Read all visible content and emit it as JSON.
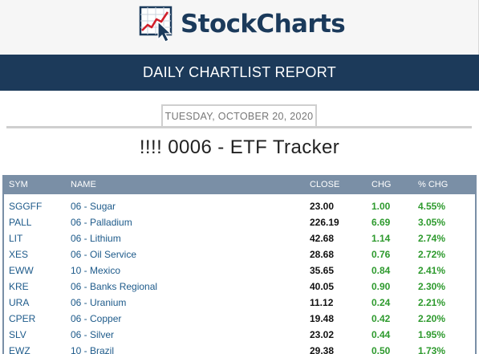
{
  "header": {
    "logo_text": "StockCharts",
    "logo_icon": "chart-cursor-icon"
  },
  "report": {
    "title": "DAILY CHARTLIST REPORT",
    "date": "TUESDAY, OCTOBER 20, 2020",
    "chartlist_title": "!!!! 0006 - ETF Tracker"
  },
  "table": {
    "columns": [
      "SYM",
      "NAME",
      "CLOSE",
      "CHG",
      "% CHG"
    ],
    "rows": [
      {
        "sym": "SGGFF",
        "name": "06 - Sugar",
        "close": "23.00",
        "chg": "1.00",
        "pct": "4.55%"
      },
      {
        "sym": "PALL",
        "name": "06 - Palladium",
        "close": "226.19",
        "chg": "6.69",
        "pct": "3.05%"
      },
      {
        "sym": "LIT",
        "name": "06 - Lithium",
        "close": "42.68",
        "chg": "1.14",
        "pct": "2.74%"
      },
      {
        "sym": "XES",
        "name": "06 - Oil Service",
        "close": "28.68",
        "chg": "0.76",
        "pct": "2.72%"
      },
      {
        "sym": "EWW",
        "name": "10 - Mexico",
        "close": "35.65",
        "chg": "0.84",
        "pct": "2.41%"
      },
      {
        "sym": "KRE",
        "name": "06 - Banks Regional",
        "close": "40.05",
        "chg": "0.90",
        "pct": "2.30%"
      },
      {
        "sym": "URA",
        "name": "06 - Uranium",
        "close": "11.12",
        "chg": "0.24",
        "pct": "2.21%"
      },
      {
        "sym": "CPER",
        "name": "06 - Copper",
        "close": "19.48",
        "chg": "0.42",
        "pct": "2.20%"
      },
      {
        "sym": "SLV",
        "name": "06 - Silver",
        "close": "23.02",
        "chg": "0.44",
        "pct": "1.95%"
      },
      {
        "sym": "EWZ",
        "name": "10 - Brazil",
        "close": "29.38",
        "chg": "0.50",
        "pct": "1.73%"
      }
    ]
  },
  "colors": {
    "brand_navy": "#1c3a5a",
    "header_row": "#7a8fa6",
    "link_blue": "#1d5a8a",
    "gain_green": "#2e9a2e"
  }
}
